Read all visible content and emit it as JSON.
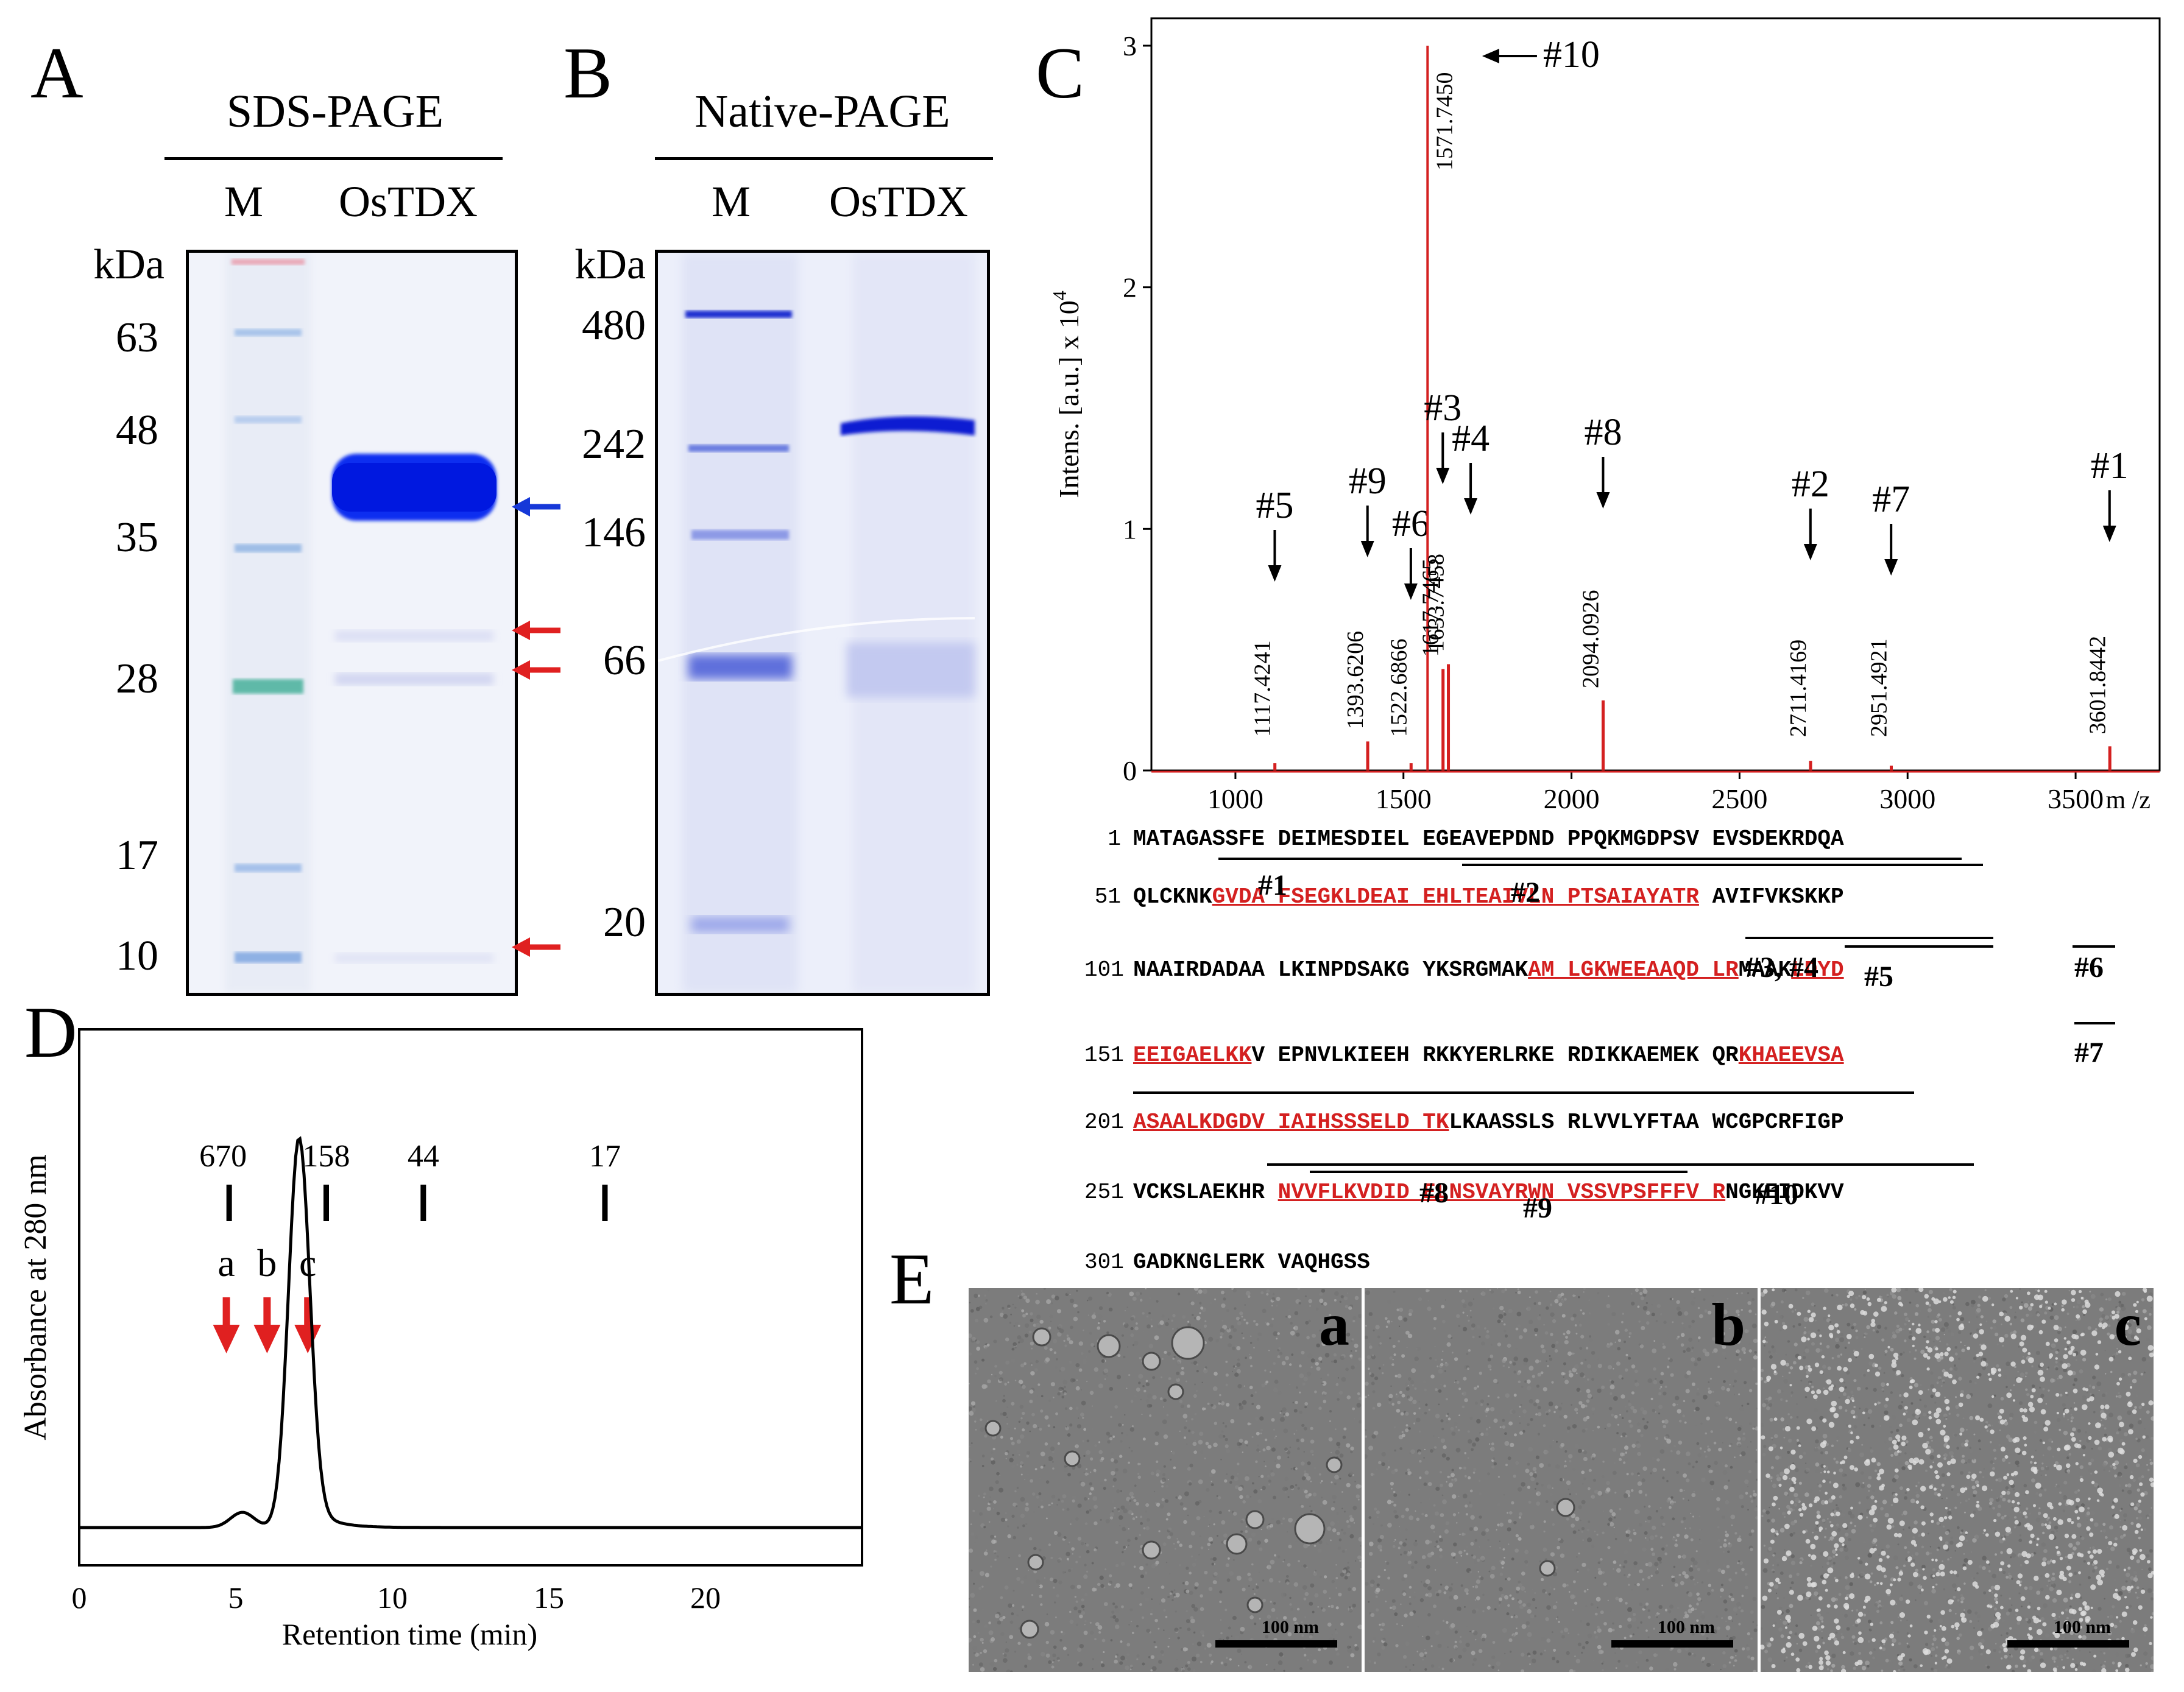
{
  "panels": {
    "A": "A",
    "B": "B",
    "C": "C",
    "D": "D",
    "E": "E"
  },
  "panelA": {
    "title": "SDS-PAGE",
    "lanes": [
      "M",
      "OsTDX"
    ],
    "unit": "kDa",
    "markers": [
      "63",
      "48",
      "35",
      "28",
      "17",
      "10"
    ]
  },
  "panelB": {
    "title": "Native-PAGE",
    "lanes": [
      "M",
      "OsTDX"
    ],
    "unit": "kDa",
    "markers": [
      "480",
      "242",
      "146",
      "66",
      "20"
    ]
  },
  "panelC": {
    "ylabel": "Intens. [a.u.] x 10",
    "ylabel_exp": "4",
    "xunit": "m /z",
    "xticks": [
      "1000",
      "1500",
      "2000",
      "2500",
      "3000",
      "3500"
    ],
    "yticks": [
      "0",
      "1",
      "2",
      "3"
    ],
    "colors": {
      "spectrum": "#d42020"
    },
    "peaks": [
      {
        "mz": 1117.4241,
        "label": "1117.4241",
        "tag": "#5",
        "intensity": 0.03
      },
      {
        "mz": 1393.6206,
        "label": "1393.6206",
        "tag": "#9",
        "intensity": 0.12
      },
      {
        "mz": 1522.6866,
        "label": "1522.6866",
        "tag": "#6",
        "intensity": 0.03
      },
      {
        "mz": 1571.745,
        "label": "1571.7450",
        "tag": "#10",
        "intensity": 3.0
      },
      {
        "mz": 1617.7465,
        "label": "1617.7465",
        "tag": "#3",
        "intensity": 0.42
      },
      {
        "mz": 1633.7458,
        "label": "1633.7458",
        "tag": "#4",
        "intensity": 0.44
      },
      {
        "mz": 2094.0926,
        "label": "2094.0926",
        "tag": "#8",
        "intensity": 0.29
      },
      {
        "mz": 2711.4169,
        "label": "2711.4169",
        "tag": "#2",
        "intensity": 0.04
      },
      {
        "mz": 2951.4921,
        "label": "2951.4921",
        "tag": "#7",
        "intensity": 0.02
      },
      {
        "mz": 3601.8442,
        "label": "3601.8442",
        "tag": "#1",
        "intensity": 0.1
      }
    ]
  },
  "sequence": {
    "nums": [
      "1",
      "51",
      "101",
      "151",
      "201",
      "251",
      "301"
    ],
    "rows": [
      [
        {
          "t": "MATAGASSFE DEIMESDIEL EGEAVEPDND PPQKMGDPSV EVSDEKRDQA",
          "r": false
        }
      ],
      [
        {
          "t": "QLCKNK",
          "r": false
        },
        {
          "t": "GVDA FSEGKLDEAI EHLTEAIVLN PTSAIAYATR",
          "r": true
        },
        {
          "t": " AVIFVKSKKP",
          "r": false
        }
      ],
      [
        {
          "t": "NAAIRDADAA LKINPDSAKG YKSRGMAK",
          "r": false
        },
        {
          "t": "AM LGKWEEAAQD LR",
          "r": true
        },
        {
          "t": "MAAK",
          "r": false
        },
        {
          "t": "LDYD",
          "r": true
        }
      ],
      [
        {
          "t": "EEIGAELKK",
          "r": true
        },
        {
          "t": "V EPNVLKIEEH RKKYERLRKE RDIKKAEMEK QR",
          "r": false
        },
        {
          "t": "KHAEEVSA",
          "r": true
        }
      ],
      [
        {
          "t": "ASAALKDGDV IAIHSSSELD TK",
          "r": true
        },
        {
          "t": "LKAASSLS RLVVLYFTAA WCGPCRFIGP",
          "r": false
        }
      ],
      [
        {
          "t": "VCKSLAEKHR ",
          "r": false
        },
        {
          "t": "NVVFLKVDID ELNSVAYRWN VSSVPSFFFV R",
          "r": true
        },
        {
          "t": "NGKEIDKVV",
          "r": false
        }
      ],
      [
        {
          "t": "GADKNGLERK VAQHGSS",
          "r": false
        }
      ]
    ],
    "peptides": [
      "#1",
      "#2",
      "#3, #4",
      "#5",
      "#6",
      "#7",
      "#8",
      "#9",
      "#10"
    ]
  },
  "panelD": {
    "ylabel": "Absorbance at 280 nm",
    "xlabel": "Retention time (min)",
    "xticks": [
      "0",
      "5",
      "10",
      "15",
      "20"
    ],
    "standards": [
      {
        "label": "670",
        "t": 4.4
      },
      {
        "label": "158",
        "t": 7.5
      },
      {
        "label": "44",
        "t": 10.6
      },
      {
        "label": "17",
        "t": 16.4
      }
    ],
    "fractions": [
      {
        "label": "a",
        "t": 4.7
      },
      {
        "label": "b",
        "t": 6.0
      },
      {
        "label": "c",
        "t": 7.3
      }
    ],
    "xrange": [
      0,
      25
    ]
  },
  "panelE": {
    "images": [
      {
        "label": "a"
      },
      {
        "label": "b"
      },
      {
        "label": "c"
      }
    ],
    "scale": "100 nm"
  }
}
